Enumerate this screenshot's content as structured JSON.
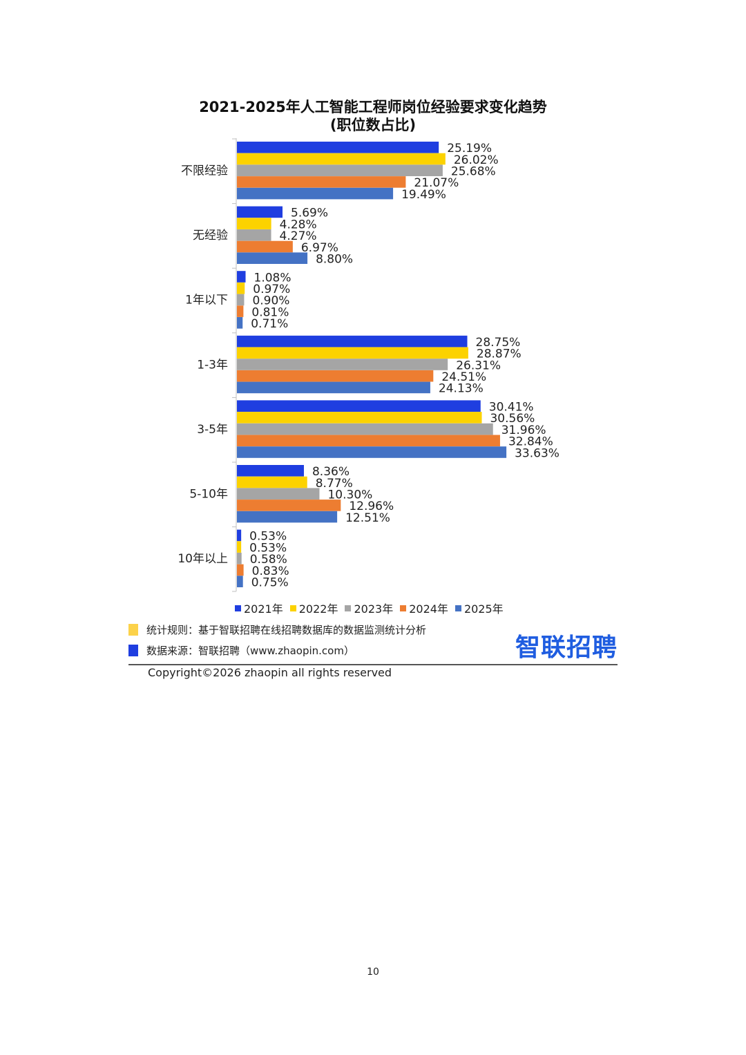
{
  "chart_data": {
    "type": "bar",
    "orientation": "horizontal",
    "title": "2021-2025年人工智能工程师岗位经验要求变化趋势",
    "subtitle": "(职位数占比)",
    "categories": [
      "不限经验",
      "无经验",
      "1年以下",
      "1-3年",
      "3-5年",
      "5-10年",
      "10年以上"
    ],
    "series": [
      {
        "name": "2021年",
        "color": "#1f3ee0",
        "values": [
          25.19,
          5.69,
          1.08,
          28.75,
          30.41,
          8.36,
          0.53
        ],
        "labels": [
          "25.19%",
          "5.69%",
          "1.08%",
          "28.75%",
          "30.41%",
          "8.36%",
          "0.53%"
        ]
      },
      {
        "name": "2022年",
        "color": "#fcd200",
        "values": [
          26.02,
          4.28,
          0.97,
          28.87,
          30.56,
          8.77,
          0.53
        ],
        "labels": [
          "26.02%",
          "4.28%",
          "0.97%",
          "28.87%",
          "30.56%",
          "8.77%",
          "0.53%"
        ]
      },
      {
        "name": "2023年",
        "color": "#a5a5a5",
        "values": [
          25.68,
          4.27,
          0.9,
          26.31,
          31.96,
          10.3,
          0.58
        ],
        "labels": [
          "25.68%",
          "4.27%",
          "0.90%",
          "26.31%",
          "31.96%",
          "10.30%",
          "0.58%"
        ]
      },
      {
        "name": "2024年",
        "color": "#ed7d31",
        "values": [
          21.07,
          6.97,
          0.81,
          24.51,
          32.84,
          12.96,
          0.83
        ],
        "labels": [
          "21.07%",
          "6.97%",
          "0.81%",
          "24.51%",
          "32.84%",
          "12.96%",
          "0.83%"
        ]
      },
      {
        "name": "2025年",
        "color": "#4472c4",
        "values": [
          19.49,
          8.8,
          0.71,
          24.13,
          33.63,
          12.51,
          0.75
        ],
        "labels": [
          "19.49%",
          "8.80%",
          "0.71%",
          "24.13%",
          "33.63%",
          "12.51%",
          "0.75%"
        ]
      }
    ],
    "xlim": [
      0,
      40
    ],
    "grid": false,
    "legend": "bottom"
  },
  "notes": {
    "rule": {
      "text": "统计规则：基于智联招聘在线招聘数据库的数据监测统计分析",
      "color": "#fcd24a"
    },
    "source": {
      "text": "数据来源：智联招聘（www.zhaopin.com）",
      "color": "#1f3ee0"
    }
  },
  "brand": {
    "logo_text": "智联招聘"
  },
  "footer": {
    "copyright": "Copyright©2026 zhaopin all rights reserved",
    "page_number": "10"
  }
}
